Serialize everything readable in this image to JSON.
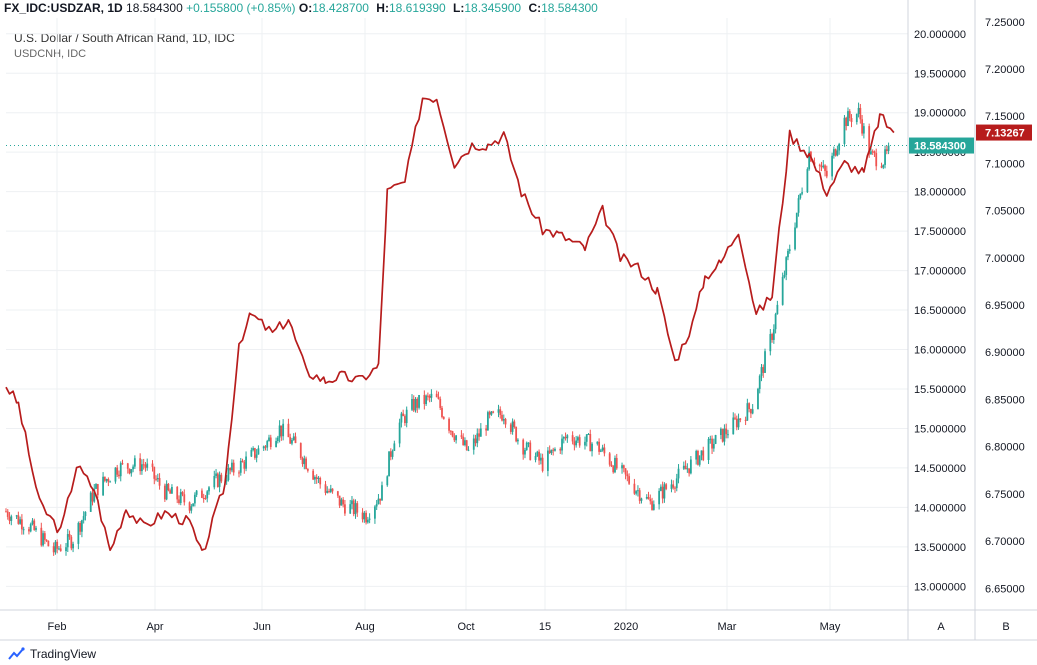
{
  "header": {
    "symbol": "FX_IDC:USDZAR, 1D",
    "last": "18.584300",
    "change": "+0.155800 (+0.85%)",
    "o_label": "O:",
    "o": "18.428700",
    "h_label": "H:",
    "h": "18.619390",
    "l_label": "L:",
    "l": "18.345900",
    "c_label": "C:",
    "c": "18.584300"
  },
  "legend": {
    "series1": "U.S. Dollar / South African Rand, 1D, IDC",
    "series2": "USDCNH, IDC"
  },
  "brand": "TradingView",
  "colors": {
    "up": "#26a69a",
    "down": "#ef5350",
    "line": "#b71c1c",
    "badge_green": "#26a69a",
    "badge_red": "#b71c1c"
  },
  "chart_data": {
    "type": "line",
    "x_ticks": [
      "Feb",
      "Apr",
      "Jun",
      "Aug",
      "Oct",
      "15",
      "2020",
      "Mar",
      "May"
    ],
    "scale_buttons": [
      "A",
      "B"
    ],
    "axis_left_candles": {
      "range": [
        12.7,
        20.2
      ],
      "ticks": [
        "20.000000",
        "19.500000",
        "19.000000",
        "18.500000",
        "18.000000",
        "17.500000",
        "17.000000",
        "16.500000",
        "16.000000",
        "15.500000",
        "15.000000",
        "14.500000",
        "14.000000",
        "13.500000",
        "13.000000"
      ],
      "tick_values": [
        20,
        19.5,
        19,
        18.5,
        18,
        17.5,
        17,
        16.5,
        16,
        15.5,
        15,
        14.5,
        14,
        13.5,
        13
      ],
      "last_label": "18.584300",
      "last_value": 18.5843
    },
    "axis_right_line": {
      "range": [
        6.627,
        7.254
      ],
      "ticks": [
        "7.25000",
        "7.20000",
        "7.15000",
        "7.10000",
        "7.05000",
        "7.00000",
        "6.95000",
        "6.90000",
        "6.85000",
        "6.80000",
        "6.75000",
        "6.70000",
        "6.65000"
      ],
      "tick_values": [
        7.25,
        7.2,
        7.15,
        7.1,
        7.05,
        7,
        6.95,
        6.9,
        6.85,
        6.8,
        6.75,
        6.7,
        6.65
      ],
      "last_label": "7.13267",
      "last_value": 7.13267
    },
    "series": [
      {
        "type": "candlestick",
        "points": [
          [
            "2019-01-01",
            13.95
          ],
          [
            "2019-01-15",
            13.75
          ],
          [
            "2019-01-28",
            13.45
          ],
          [
            "2019-02-08",
            13.6
          ],
          [
            "2019-02-20",
            14.2
          ],
          [
            "2019-03-05",
            14.5
          ],
          [
            "2019-03-20",
            14.55
          ],
          [
            "2019-04-01",
            14.2
          ],
          [
            "2019-04-15",
            14.05
          ],
          [
            "2019-05-01",
            14.35
          ],
          [
            "2019-05-15",
            14.55
          ],
          [
            "2019-05-28",
            14.8
          ],
          [
            "2019-06-05",
            15.0
          ],
          [
            "2019-06-15",
            14.75
          ],
          [
            "2019-06-28",
            14.3
          ],
          [
            "2019-07-10",
            14.05
          ],
          [
            "2019-07-24",
            13.9
          ],
          [
            "2019-08-02",
            14.2
          ],
          [
            "2019-08-10",
            15.0
          ],
          [
            "2019-08-20",
            15.3
          ],
          [
            "2019-09-01",
            15.4
          ],
          [
            "2019-09-10",
            15.0
          ],
          [
            "2019-09-20",
            14.7
          ],
          [
            "2019-10-01",
            15.1
          ],
          [
            "2019-10-10",
            15.2
          ],
          [
            "2019-10-20",
            14.8
          ],
          [
            "2019-11-01",
            14.55
          ],
          [
            "2019-11-15",
            14.9
          ],
          [
            "2019-12-01",
            14.8
          ],
          [
            "2019-12-15",
            14.45
          ],
          [
            "2020-01-01",
            14.05
          ],
          [
            "2020-01-15",
            14.35
          ],
          [
            "2020-01-31",
            14.7
          ],
          [
            "2020-02-15",
            15.0
          ],
          [
            "2020-02-28",
            15.3
          ],
          [
            "2020-03-10",
            16.2
          ],
          [
            "2020-03-20",
            17.3
          ],
          [
            "2020-03-31",
            18.5
          ],
          [
            "2020-04-10",
            18.2
          ],
          [
            "2020-04-20",
            18.9
          ],
          [
            "2020-04-28",
            19.0
          ],
          [
            "2020-05-05",
            18.45
          ],
          [
            "2020-05-12",
            18.4
          ],
          [
            "2020-05-18",
            18.58
          ]
        ]
      },
      {
        "type": "line",
        "points": [
          [
            "2019-01-01",
            6.865
          ],
          [
            "2019-01-08",
            6.845
          ],
          [
            "2019-01-20",
            6.74
          ],
          [
            "2019-02-01",
            6.71
          ],
          [
            "2019-02-10",
            6.78
          ],
          [
            "2019-02-20",
            6.755
          ],
          [
            "2019-03-01",
            6.69
          ],
          [
            "2019-03-10",
            6.735
          ],
          [
            "2019-03-20",
            6.715
          ],
          [
            "2019-04-01",
            6.73
          ],
          [
            "2019-04-15",
            6.72
          ],
          [
            "2019-04-22",
            6.685
          ],
          [
            "2019-05-05",
            6.76
          ],
          [
            "2019-05-13",
            6.91
          ],
          [
            "2019-05-20",
            6.94
          ],
          [
            "2019-06-01",
            6.92
          ],
          [
            "2019-06-10",
            6.935
          ],
          [
            "2019-06-20",
            6.88
          ],
          [
            "2019-07-01",
            6.87
          ],
          [
            "2019-07-10",
            6.875
          ],
          [
            "2019-07-20",
            6.87
          ],
          [
            "2019-07-31",
            6.885
          ],
          [
            "2019-08-05",
            7.07
          ],
          [
            "2019-08-15",
            7.08
          ],
          [
            "2019-08-25",
            7.17
          ],
          [
            "2019-09-02",
            7.17
          ],
          [
            "2019-09-12",
            7.1
          ],
          [
            "2019-09-22",
            7.12
          ],
          [
            "2019-10-01",
            7.12
          ],
          [
            "2019-10-10",
            7.13
          ],
          [
            "2019-10-20",
            7.07
          ],
          [
            "2019-11-01",
            7.03
          ],
          [
            "2019-11-10",
            7.025
          ],
          [
            "2019-11-25",
            7.01
          ],
          [
            "2019-12-05",
            7.05
          ],
          [
            "2019-12-15",
            7.0
          ],
          [
            "2019-12-25",
            6.99
          ],
          [
            "2020-01-05",
            6.965
          ],
          [
            "2020-01-15",
            6.89
          ],
          [
            "2020-01-25",
            6.93
          ],
          [
            "2020-02-01",
            6.98
          ],
          [
            "2020-02-10",
            6.995
          ],
          [
            "2020-02-20",
            7.03
          ],
          [
            "2020-03-01",
            6.94
          ],
          [
            "2020-03-10",
            6.96
          ],
          [
            "2020-03-20",
            7.13
          ],
          [
            "2020-03-31",
            7.11
          ],
          [
            "2020-04-10",
            7.07
          ],
          [
            "2020-04-20",
            7.1
          ],
          [
            "2020-05-01",
            7.09
          ],
          [
            "2020-05-10",
            7.15
          ],
          [
            "2020-05-18",
            7.13267
          ]
        ]
      }
    ]
  }
}
